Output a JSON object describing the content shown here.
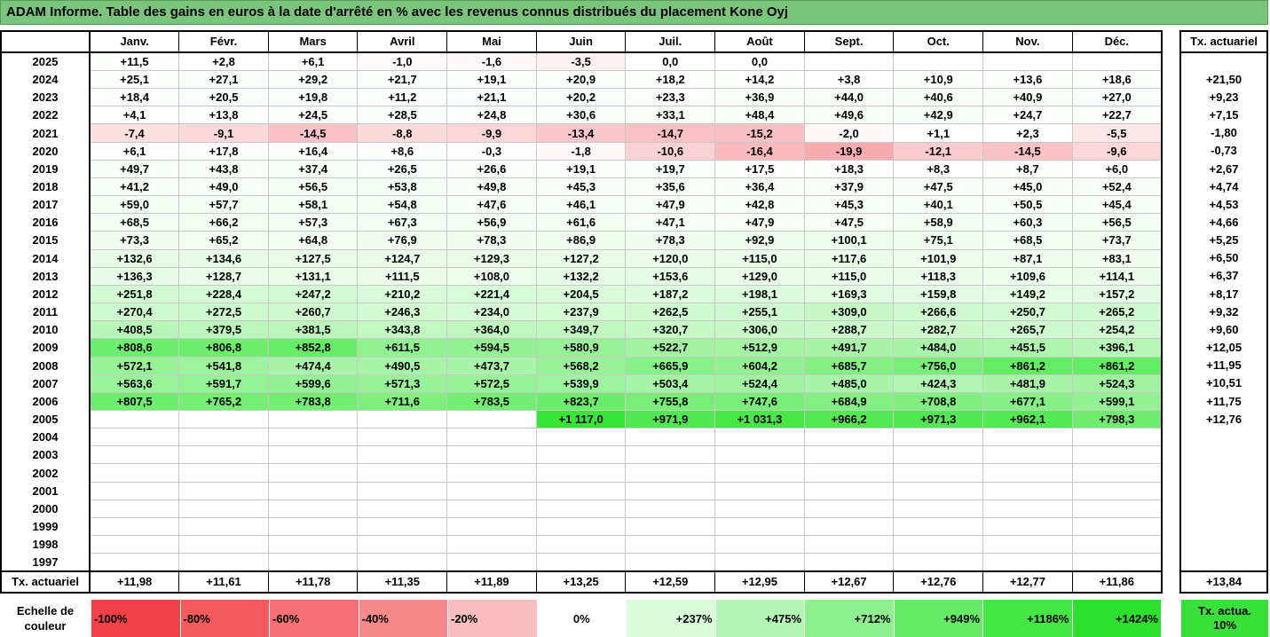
{
  "title": "ADAM Informe. Table des gains en euros à la date d'arrêté en % avec les revenus connus distribués du placement Kone Oyj",
  "months": [
    "Janv.",
    "Févr.",
    "Mars",
    "Avril",
    "Mai",
    "Juin",
    "Juil.",
    "Août",
    "Sept.",
    "Oct.",
    "Nov.",
    "Déc."
  ],
  "side_header": "Tx. actuariel",
  "footer_label": "Tx. actuariel",
  "rows": [
    {
      "year": "2025",
      "values": [
        "+11,5",
        "+2,8",
        "+6,1",
        "-1,0",
        "-1,6",
        "-3,5",
        "0,0",
        "0,0",
        "",
        "",
        "",
        ""
      ],
      "tx": ""
    },
    {
      "year": "2024",
      "values": [
        "+25,1",
        "+27,1",
        "+29,2",
        "+21,7",
        "+19,1",
        "+20,9",
        "+18,2",
        "+14,2",
        "+3,8",
        "+10,9",
        "+13,6",
        "+18,6"
      ],
      "tx": "+21,50"
    },
    {
      "year": "2023",
      "values": [
        "+18,4",
        "+20,5",
        "+19,8",
        "+11,2",
        "+21,1",
        "+20,2",
        "+23,3",
        "+36,9",
        "+44,0",
        "+40,6",
        "+40,9",
        "+27,0"
      ],
      "tx": "+9,23"
    },
    {
      "year": "2022",
      "values": [
        "+4,1",
        "+13,8",
        "+24,5",
        "+28,5",
        "+24,8",
        "+30,6",
        "+33,1",
        "+48,4",
        "+49,6",
        "+42,9",
        "+24,7",
        "+22,7"
      ],
      "tx": "+7,15"
    },
    {
      "year": "2021",
      "values": [
        "-7,4",
        "-9,1",
        "-14,5",
        "-8,8",
        "-9,9",
        "-13,4",
        "-14,7",
        "-15,2",
        "-2,0",
        "+1,1",
        "+2,3",
        "-5,5"
      ],
      "tx": "-1,80"
    },
    {
      "year": "2020",
      "values": [
        "+6,1",
        "+17,8",
        "+16,4",
        "+8,6",
        "-0,3",
        "-1,8",
        "-10,6",
        "-16,4",
        "-19,9",
        "-12,1",
        "-14,5",
        "-9,6"
      ],
      "tx": "-0,73"
    },
    {
      "year": "2019",
      "values": [
        "+49,7",
        "+43,8",
        "+37,4",
        "+26,5",
        "+26,6",
        "+19,1",
        "+19,7",
        "+17,5",
        "+18,3",
        "+8,3",
        "+8,7",
        "+6,0"
      ],
      "tx": "+2,67"
    },
    {
      "year": "2018",
      "values": [
        "+41,2",
        "+49,0",
        "+56,5",
        "+53,8",
        "+49,8",
        "+45,3",
        "+35,6",
        "+36,4",
        "+37,9",
        "+47,5",
        "+45,0",
        "+52,4"
      ],
      "tx": "+4,74"
    },
    {
      "year": "2017",
      "values": [
        "+59,0",
        "+57,7",
        "+58,1",
        "+54,8",
        "+47,6",
        "+46,1",
        "+47,9",
        "+42,8",
        "+45,3",
        "+40,1",
        "+50,5",
        "+45,4"
      ],
      "tx": "+4,53"
    },
    {
      "year": "2016",
      "values": [
        "+68,5",
        "+66,2",
        "+57,3",
        "+67,3",
        "+56,9",
        "+61,6",
        "+47,1",
        "+47,9",
        "+47,5",
        "+58,9",
        "+60,3",
        "+56,5"
      ],
      "tx": "+4,66"
    },
    {
      "year": "2015",
      "values": [
        "+73,3",
        "+65,2",
        "+64,8",
        "+76,9",
        "+78,3",
        "+86,9",
        "+78,3",
        "+92,9",
        "+100,1",
        "+75,1",
        "+68,5",
        "+73,7"
      ],
      "tx": "+5,25"
    },
    {
      "year": "2014",
      "values": [
        "+132,6",
        "+134,6",
        "+127,5",
        "+124,7",
        "+129,3",
        "+127,2",
        "+120,0",
        "+115,0",
        "+117,6",
        "+101,9",
        "+87,1",
        "+83,1"
      ],
      "tx": "+6,50"
    },
    {
      "year": "2013",
      "values": [
        "+136,3",
        "+128,7",
        "+131,1",
        "+111,5",
        "+108,0",
        "+132,2",
        "+153,6",
        "+129,0",
        "+115,0",
        "+118,3",
        "+109,6",
        "+114,1"
      ],
      "tx": "+6,37"
    },
    {
      "year": "2012",
      "values": [
        "+251,8",
        "+228,4",
        "+247,2",
        "+210,2",
        "+221,4",
        "+204,5",
        "+187,2",
        "+198,1",
        "+169,3",
        "+159,8",
        "+149,2",
        "+157,2"
      ],
      "tx": "+8,17"
    },
    {
      "year": "2011",
      "values": [
        "+270,4",
        "+272,5",
        "+260,7",
        "+246,3",
        "+234,0",
        "+237,9",
        "+262,5",
        "+255,1",
        "+309,0",
        "+266,6",
        "+250,7",
        "+265,2"
      ],
      "tx": "+9,32"
    },
    {
      "year": "2010",
      "values": [
        "+408,5",
        "+379,5",
        "+381,5",
        "+343,8",
        "+364,0",
        "+349,7",
        "+320,7",
        "+306,0",
        "+288,7",
        "+282,7",
        "+265,7",
        "+254,2"
      ],
      "tx": "+9,60"
    },
    {
      "year": "2009",
      "values": [
        "+808,6",
        "+806,8",
        "+852,8",
        "+611,5",
        "+594,5",
        "+580,9",
        "+522,7",
        "+512,9",
        "+491,7",
        "+484,0",
        "+451,5",
        "+396,1"
      ],
      "tx": "+12,05"
    },
    {
      "year": "2008",
      "values": [
        "+572,1",
        "+541,8",
        "+474,4",
        "+490,5",
        "+473,7",
        "+568,2",
        "+665,9",
        "+604,2",
        "+685,7",
        "+756,0",
        "+861,2",
        "+861,2"
      ],
      "tx": "+11,95"
    },
    {
      "year": "2007",
      "values": [
        "+563,6",
        "+591,7",
        "+599,6",
        "+571,3",
        "+572,5",
        "+539,9",
        "+503,4",
        "+524,4",
        "+485,0",
        "+424,3",
        "+481,9",
        "+524,3"
      ],
      "tx": "+10,51"
    },
    {
      "year": "2006",
      "values": [
        "+807,5",
        "+765,2",
        "+783,8",
        "+711,6",
        "+783,5",
        "+823,7",
        "+755,8",
        "+747,6",
        "+684,9",
        "+708,8",
        "+677,1",
        "+599,1"
      ],
      "tx": "+11,75"
    },
    {
      "year": "2005",
      "values": [
        "",
        "",
        "",
        "",
        "",
        "+1 117,0",
        "+971,9",
        "+1 031,3",
        "+966,2",
        "+971,3",
        "+962,1",
        "+798,3"
      ],
      "tx": "+12,76"
    },
    {
      "year": "2004",
      "values": [
        "",
        "",
        "",
        "",
        "",
        "",
        "",
        "",
        "",
        "",
        "",
        ""
      ],
      "tx": ""
    },
    {
      "year": "2003",
      "values": [
        "",
        "",
        "",
        "",
        "",
        "",
        "",
        "",
        "",
        "",
        "",
        ""
      ],
      "tx": ""
    },
    {
      "year": "2002",
      "values": [
        "",
        "",
        "",
        "",
        "",
        "",
        "",
        "",
        "",
        "",
        "",
        ""
      ],
      "tx": ""
    },
    {
      "year": "2001",
      "values": [
        "",
        "",
        "",
        "",
        "",
        "",
        "",
        "",
        "",
        "",
        "",
        ""
      ],
      "tx": ""
    },
    {
      "year": "2000",
      "values": [
        "",
        "",
        "",
        "",
        "",
        "",
        "",
        "",
        "",
        "",
        "",
        ""
      ],
      "tx": ""
    },
    {
      "year": "1999",
      "values": [
        "",
        "",
        "",
        "",
        "",
        "",
        "",
        "",
        "",
        "",
        "",
        ""
      ],
      "tx": ""
    },
    {
      "year": "1998",
      "values": [
        "",
        "",
        "",
        "",
        "",
        "",
        "",
        "",
        "",
        "",
        "",
        ""
      ],
      "tx": ""
    },
    {
      "year": "1997",
      "values": [
        "",
        "",
        "",
        "",
        "",
        "",
        "",
        "",
        "",
        "",
        "",
        ""
      ],
      "tx": ""
    }
  ],
  "footer_values": [
    "+11,98",
    "+11,61",
    "+11,78",
    "+11,35",
    "+11,89",
    "+13,25",
    "+12,59",
    "+12,95",
    "+12,67",
    "+12,76",
    "+12,77",
    "+11,86"
  ],
  "footer_total": "+13,84",
  "scale": {
    "label": "Echelle de couleur",
    "items": [
      {
        "text": "-100%",
        "color": "#f0404a",
        "align": "left"
      },
      {
        "text": "-80%",
        "color": "#f25a5e",
        "align": "left"
      },
      {
        "text": "-60%",
        "color": "#f47074",
        "align": "left"
      },
      {
        "text": "-40%",
        "color": "#f6898b",
        "align": "left"
      },
      {
        "text": "-20%",
        "color": "#f9bdbf",
        "align": "left"
      },
      {
        "text": "0%",
        "color": "#ffffff",
        "align": "center"
      },
      {
        "text": "+237%",
        "color": "#d9fbd9",
        "align": "right"
      },
      {
        "text": "+475%",
        "color": "#b3f5b3",
        "align": "right"
      },
      {
        "text": "+712%",
        "color": "#8ef08e",
        "align": "right"
      },
      {
        "text": "+949%",
        "color": "#66ea66",
        "align": "right"
      },
      {
        "text": "+1186%",
        "color": "#44e544",
        "align": "right"
      },
      {
        "text": "+1424%",
        "color": "#2ee02e",
        "align": "right"
      }
    ],
    "extra_label": "Tx. actua. 10%",
    "extra_color": "#3ae03a"
  }
}
